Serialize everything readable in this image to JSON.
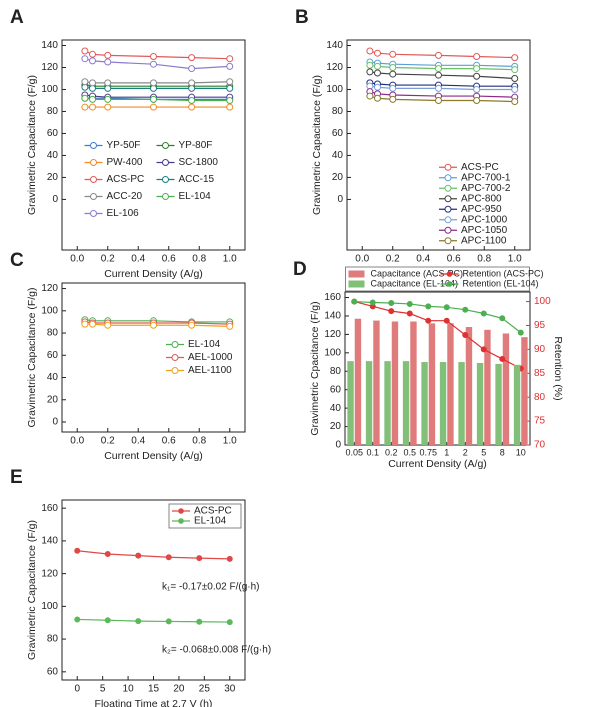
{
  "chart_data": [
    {
      "type": "line",
      "label": "A",
      "xlabel": "Current Density (A/g)",
      "ylabel": "Gravimetric Capacitance (F/g)",
      "x": [
        0.05,
        0.1,
        0.2,
        0.5,
        0.75,
        1.0
      ],
      "xlim": [
        -0.1,
        1.1
      ],
      "xticks": [
        {
          "value": 0,
          "label": "0.0"
        },
        0.2,
        0.4,
        0.6,
        0.8,
        {
          "value": 1,
          "label": "1.0"
        }
      ],
      "ylim": [
        -46,
        145
      ],
      "yticks": [
        0,
        20,
        40,
        60,
        80,
        100,
        120,
        140
      ],
      "marker": "open-circle",
      "legend": "lower center",
      "legend_columns": 2,
      "legend_frame": false,
      "series": [
        {
          "name": "YP-50F",
          "color": "#3a7fd0",
          "values": [
            92,
            92,
            92,
            91,
            91,
            91
          ]
        },
        {
          "name": "YP-80F",
          "color": "#2e7d32",
          "values": [
            104,
            103,
            103,
            103,
            103,
            103
          ]
        },
        {
          "name": "PW-400",
          "color": "#f08a24",
          "values": [
            84,
            84,
            84,
            84,
            84,
            84
          ]
        },
        {
          "name": "SC-1800",
          "color": "#4b3a8f",
          "values": [
            95,
            94,
            93,
            93,
            93,
            93
          ]
        },
        {
          "name": "ACS-PC",
          "color": "#e05a5a",
          "values": [
            135,
            132,
            131,
            130,
            129,
            128
          ]
        },
        {
          "name": "ACC-15",
          "color": "#1a7f7f",
          "values": [
            102,
            101,
            101,
            101,
            101,
            101
          ]
        },
        {
          "name": "ACC-20",
          "color": "#888888",
          "values": [
            107,
            106,
            106,
            106,
            106,
            107
          ]
        },
        {
          "name": "EL-104",
          "color": "#4caf50",
          "values": [
            92,
            91,
            91,
            91,
            90,
            90
          ]
        },
        {
          "name": "EL-106",
          "color": "#8a7ad0",
          "values": [
            128,
            126,
            125,
            123,
            119,
            121
          ]
        }
      ]
    },
    {
      "type": "line",
      "label": "B",
      "xlabel": "Current Density (A/g)",
      "ylabel": "Gravimetric Capacitance (F/g)",
      "x": [
        0.05,
        0.1,
        0.2,
        0.5,
        0.75,
        1.0
      ],
      "xlim": [
        -0.1,
        1.1
      ],
      "xticks": [
        {
          "value": 0,
          "label": "0.0"
        },
        0.2,
        0.4,
        0.6,
        0.8,
        {
          "value": 1,
          "label": "1.0"
        }
      ],
      "ylim": [
        -46,
        145
      ],
      "yticks": [
        0,
        20,
        40,
        60,
        80,
        100,
        120,
        140
      ],
      "marker": "open-circle",
      "legend": "lower right",
      "legend_columns": 1,
      "legend_frame": false,
      "series": [
        {
          "name": "ACS-PC",
          "color": "#e05a5a",
          "values": [
            135,
            133,
            132,
            131,
            130,
            129
          ]
        },
        {
          "name": "APC-700-1",
          "color": "#5aa0d8",
          "values": [
            125,
            124,
            123,
            122,
            122,
            121
          ]
        },
        {
          "name": "APC-700-2",
          "color": "#6abf69",
          "values": [
            122,
            121,
            120,
            119,
            119,
            118
          ]
        },
        {
          "name": "APC-800",
          "color": "#444444",
          "values": [
            116,
            115,
            114,
            113,
            112,
            110
          ]
        },
        {
          "name": "APC-950",
          "color": "#1f2f7a",
          "values": [
            106,
            105,
            104,
            104,
            103,
            103
          ]
        },
        {
          "name": "APC-1000",
          "color": "#7a9fd8",
          "values": [
            103,
            102,
            101,
            101,
            100,
            100
          ]
        },
        {
          "name": "APC-1050",
          "color": "#8a2b8a",
          "values": [
            98,
            96,
            95,
            94,
            94,
            93
          ]
        },
        {
          "name": "APC-1100",
          "color": "#8a7a2b",
          "values": [
            94,
            92,
            91,
            90,
            90,
            89
          ]
        }
      ]
    },
    {
      "type": "line",
      "label": "C",
      "xlabel": "Current Density (A/g)",
      "ylabel": "Gravimetric Capacitance (F/g)",
      "x": [
        0.05,
        0.1,
        0.2,
        0.5,
        0.75,
        1.0
      ],
      "xlim": [
        -0.1,
        1.1
      ],
      "xticks": [
        {
          "value": 0,
          "label": "0.0"
        },
        0.2,
        0.4,
        0.6,
        0.8,
        {
          "value": 1,
          "label": "1.0"
        }
      ],
      "ylim": [
        -9,
        125
      ],
      "yticks": [
        0,
        20,
        40,
        60,
        80,
        100,
        120
      ],
      "marker": "open-circle",
      "legend": "center right",
      "legend_columns": 1,
      "legend_frame": false,
      "series": [
        {
          "name": "EL-104",
          "color": "#4caf50",
          "values": [
            92,
            91,
            91,
            91,
            90,
            90
          ]
        },
        {
          "name": "AEL-1000",
          "color": "#e05a5a",
          "values": [
            90,
            89,
            89,
            89,
            89,
            88
          ]
        },
        {
          "name": "AEL-1100",
          "color": "#f0a020",
          "values": [
            88,
            88,
            87,
            87,
            87,
            86
          ]
        }
      ]
    },
    {
      "type": "bar-line",
      "label": "D",
      "xlabel": "Current Density (A/g)",
      "ylabel": "Gravimetric Cpacitance (F/g)",
      "y2label": "Retention (%)",
      "categories": [
        "0.05",
        "0.1",
        "0.2",
        "0.5",
        "0.75",
        "1",
        "2",
        "5",
        "8",
        "10"
      ],
      "ylim": [
        0,
        166
      ],
      "yticks": [
        0,
        20,
        40,
        60,
        80,
        100,
        120,
        140,
        160
      ],
      "y2lim": [
        70,
        102
      ],
      "y2ticks": [
        70,
        75,
        80,
        85,
        90,
        95,
        100
      ],
      "y2color": "#e03030",
      "marker": "filled-circle",
      "legend": "top",
      "legend_columns": 2,
      "legend_frame": true,
      "series": [
        {
          "name": "Capacitance (ACS-PC)",
          "type": "bar",
          "color": "#e07b7b",
          "values": [
            137,
            135,
            134,
            134,
            132,
            132,
            128,
            125,
            121,
            117
          ]
        },
        {
          "name": "Retention (ACS-PC)",
          "type": "line",
          "axis": "y2",
          "color": "#e03030",
          "values": [
            100,
            99,
            98,
            97.5,
            96,
            96,
            93,
            90,
            88,
            86
          ]
        },
        {
          "name": "Capacitance (EL-104)",
          "type": "bar",
          "color": "#82c07a",
          "values": [
            91,
            91,
            91,
            91,
            90,
            90,
            90,
            89,
            88,
            87
          ]
        },
        {
          "name": "Retention (EL-104)",
          "type": "line",
          "axis": "y2",
          "color": "#4caf50",
          "values": [
            100,
            99.8,
            99.7,
            99.5,
            99,
            98.8,
            98.3,
            97.5,
            96.5,
            93.5
          ]
        }
      ]
    },
    {
      "type": "line",
      "label": "E",
      "xlabel": "Floating Time at 2.7 V (h)",
      "ylabel": "Gravimetric Capacitance (F/g)",
      "x": [
        0,
        6,
        12,
        18,
        24,
        30
      ],
      "xlim": [
        -3,
        33
      ],
      "xticks": [
        0,
        5,
        10,
        15,
        20,
        25,
        30
      ],
      "ylim": [
        55,
        165
      ],
      "yticks": [
        60,
        80,
        100,
        120,
        140,
        160
      ],
      "marker": "filled-circle",
      "legend": "upper right",
      "legend_columns": 1,
      "legend_frame": true,
      "series": [
        {
          "name": "ACS-PC",
          "color": "#e04848",
          "values": [
            134,
            132,
            131,
            130,
            129.5,
            129
          ]
        },
        {
          "name": "EL-104",
          "color": "#5cb85c",
          "values": [
            92,
            91.5,
            91,
            90.8,
            90.6,
            90.4
          ]
        }
      ],
      "annotations": [
        "k₁= -0.17±0.02 F/(g·h)",
        "k₂= -0.068±0.008 F/(g·h)"
      ]
    }
  ]
}
